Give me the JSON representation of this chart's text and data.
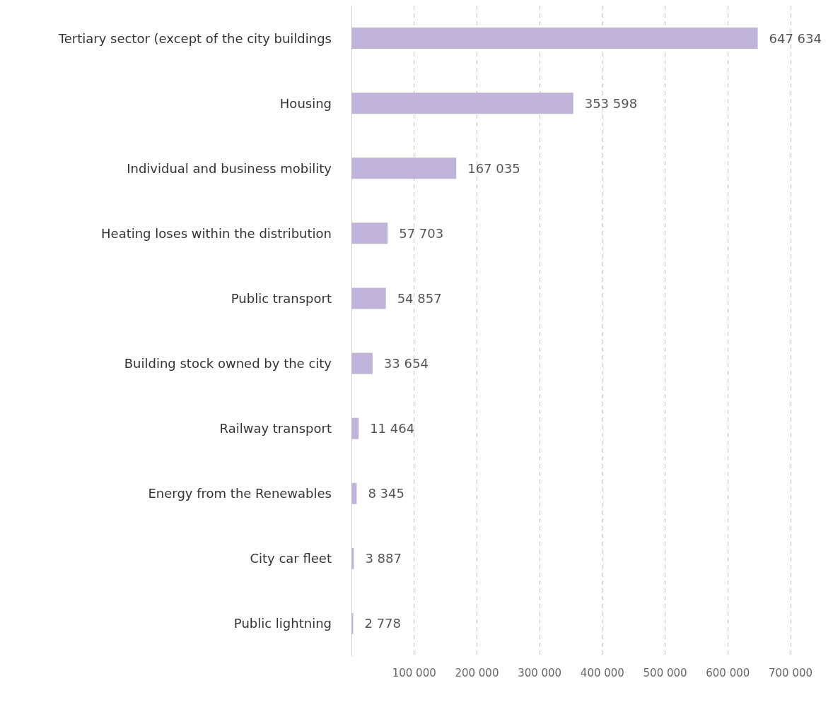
{
  "chart_data": {
    "type": "bar",
    "orientation": "horizontal",
    "categories": [
      "Tertiary sector (except of the city buildings",
      "Housing",
      "Individual and business mobility",
      "Heating loses within the distribution",
      "Public transport",
      "Building stock owned by the city",
      "Railway transport",
      "Energy from the Renewables",
      "City car fleet",
      "Public lightning"
    ],
    "values": [
      647634,
      353598,
      167035,
      57703,
      54857,
      33654,
      11464,
      8345,
      3887,
      2778
    ],
    "value_labels": [
      "647 634",
      "353 598",
      "167 035",
      "57 703",
      "54 857",
      "33 654",
      "11 464",
      "8 345",
      "3 887",
      "2 778"
    ],
    "color": "#bfb3d9",
    "xlim": [
      0,
      700000
    ],
    "xticks": [
      {
        "value": 100000,
        "label": "100 000"
      },
      {
        "value": 200000,
        "label": "200 000"
      },
      {
        "value": 300000,
        "label": "300 000"
      },
      {
        "value": 400000,
        "label": "400 000"
      },
      {
        "value": 500000,
        "label": "500 000"
      },
      {
        "value": 600000,
        "label": "600 000"
      },
      {
        "value": 700000,
        "label": "700 000"
      }
    ],
    "grid": "x"
  }
}
